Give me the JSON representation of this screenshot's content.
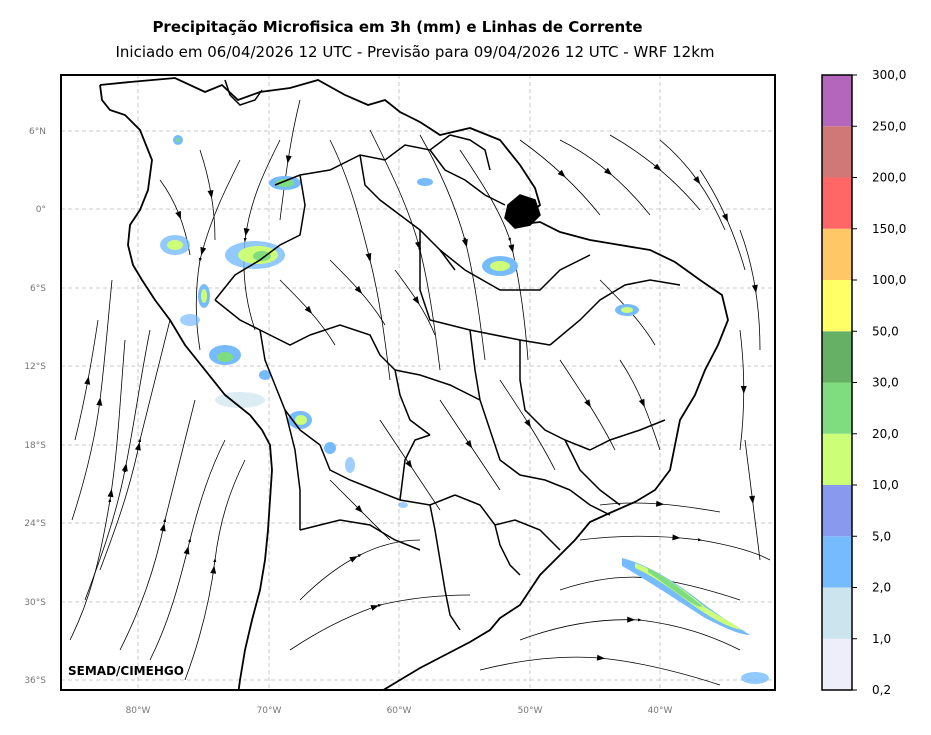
{
  "title": "Precipitação Microfisica em 3h (mm) e Linhas de Corrente",
  "subtitle": "Iniciado em 06/04/2026 12 UTC - Previsão para 09/04/2026 12 UTC - WRF 12km",
  "credit": "SEMAD/CIMEHGO",
  "lat_ticks": [
    "6°N",
    "0°",
    "6°S",
    "12°S",
    "18°S",
    "24°S",
    "30°S",
    "36°S"
  ],
  "lon_ticks": [
    "80°W",
    "70°W",
    "60°W",
    "50°W",
    "40°W"
  ],
  "colorbar": {
    "labels": [
      "0,2",
      "1,0",
      "2,0",
      "5,0",
      "10,0",
      "20,0",
      "30,0",
      "50,0",
      "100,0",
      "150,0",
      "200,0",
      "250,0",
      "300,0"
    ],
    "colors": [
      "#eeeefa",
      "#cce4ee",
      "#77bbff",
      "#8899ee",
      "#ccff77",
      "#7fdd7f",
      "#66b066",
      "#ffff66",
      "#ffc766",
      "#ff6666",
      "#d07777",
      "#b366bb"
    ]
  }
}
